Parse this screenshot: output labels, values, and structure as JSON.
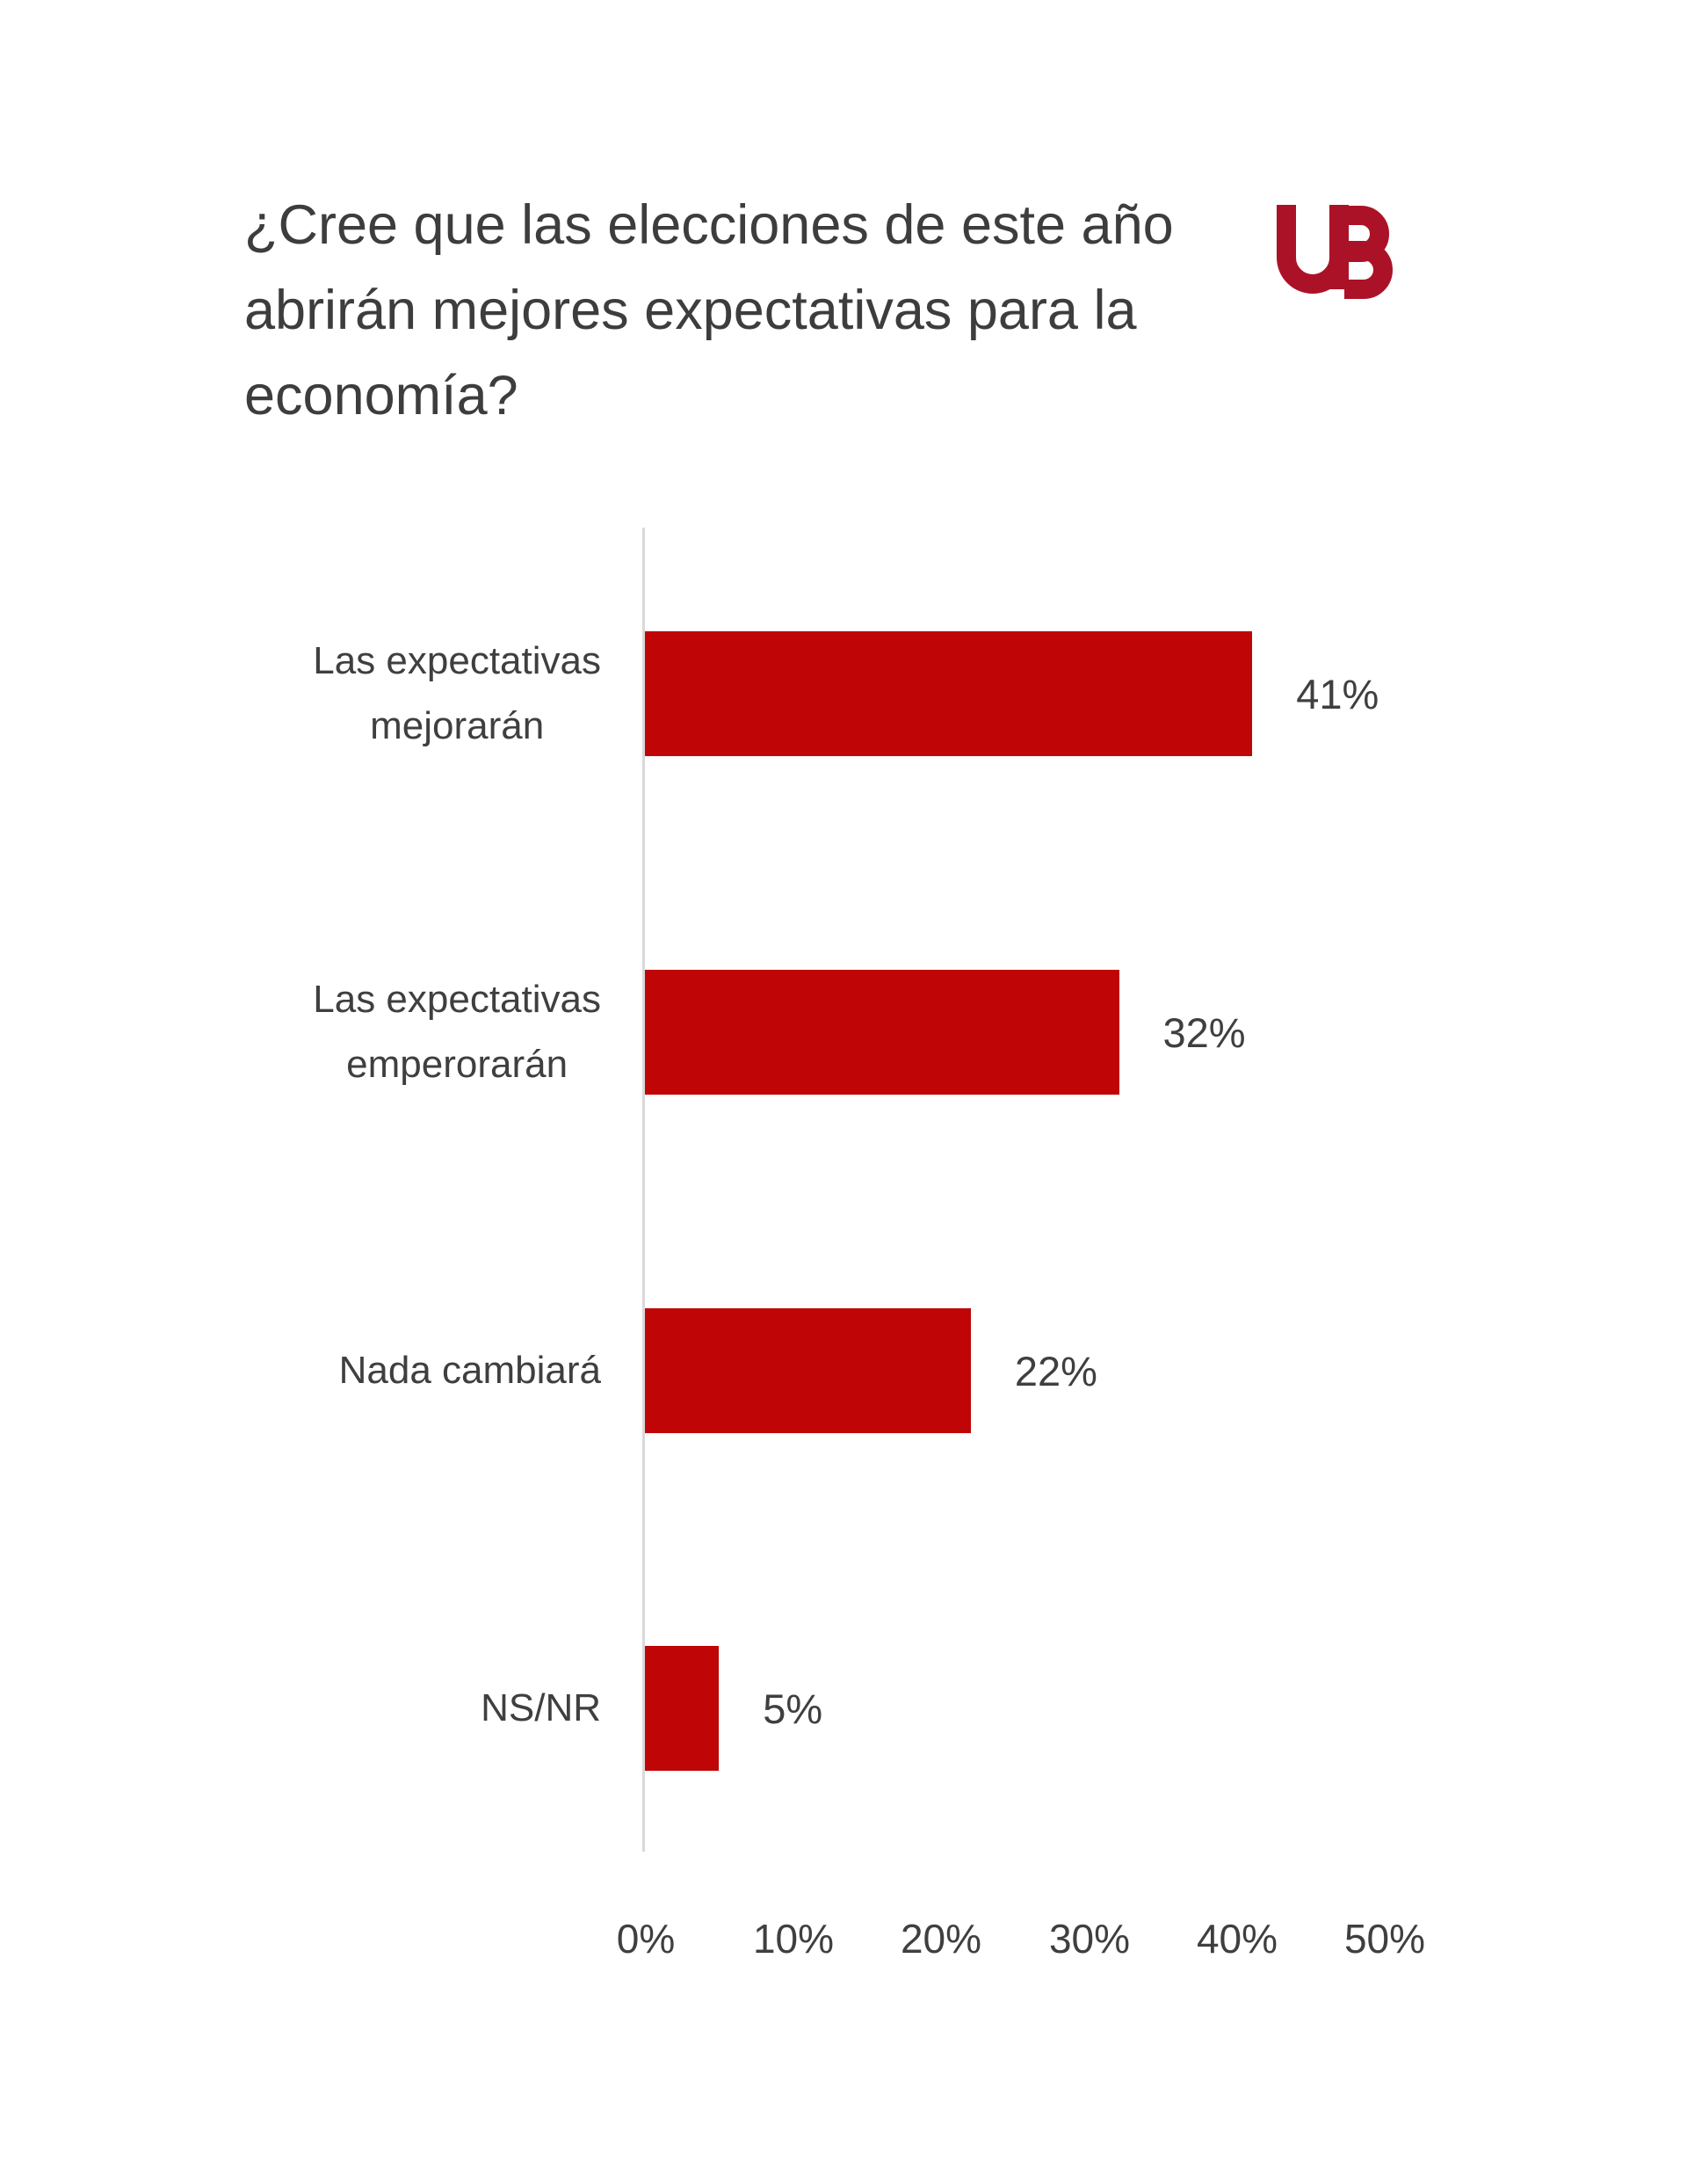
{
  "header": {
    "title_lines": [
      "¿Cree que las elecciones de este año",
      "abrirán mejores expectativas para la",
      "economía?"
    ],
    "logo": {
      "text": "UB",
      "color": "#AB1228"
    }
  },
  "colors": {
    "background": "#FFFFFF",
    "bar": "#C00507",
    "text": "#3F3F3F",
    "axis_line": "#D9D9D9",
    "logo": "#AB1228"
  },
  "chart_data": {
    "type": "bar",
    "orientation": "horizontal",
    "title": "¿Cree que las elecciones de este año abrirán mejores expectativas para la economía?",
    "categories": [
      "Las expectativas mejorarán",
      "Las expectativas emperorarán",
      "Nada cambiará",
      "NS/NR"
    ],
    "values": [
      41,
      32,
      22,
      5
    ],
    "rows": [
      {
        "label_lines": [
          "Las expectativas",
          "mejorarán"
        ],
        "value": 41,
        "value_label": "41%"
      },
      {
        "label_lines": [
          "Las expectativas",
          "emperorarán"
        ],
        "value": 32,
        "value_label": "32%"
      },
      {
        "label_lines": [
          "Nada cambiará"
        ],
        "value": 22,
        "value_label": "22%"
      },
      {
        "label_lines": [
          "NS/NR"
        ],
        "value": 5,
        "value_label": "5%"
      }
    ],
    "x_ticks": [
      "0%",
      "10%",
      "20%",
      "30%",
      "40%",
      "50%"
    ],
    "xlim": [
      0,
      50
    ],
    "xlabel": "",
    "ylabel": "",
    "grid": false,
    "legend": false,
    "bar_color": "#C00507",
    "data_label_position": "outside-end"
  }
}
